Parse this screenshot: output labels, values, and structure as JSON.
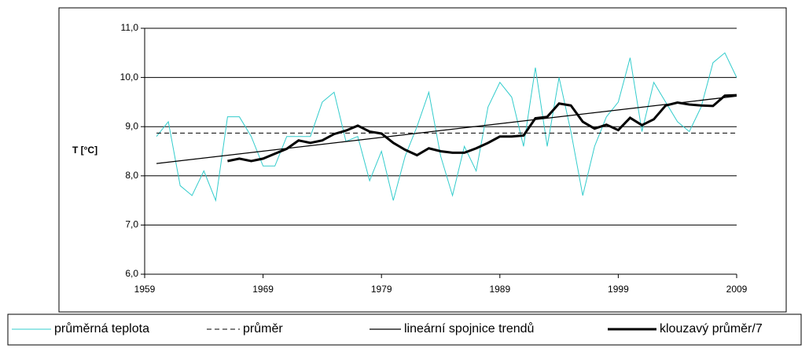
{
  "chart_data": {
    "type": "line",
    "ylabel": "T [°C]",
    "x": [
      1960,
      1961,
      1962,
      1963,
      1964,
      1965,
      1966,
      1967,
      1968,
      1969,
      1970,
      1971,
      1972,
      1973,
      1974,
      1975,
      1976,
      1977,
      1978,
      1979,
      1980,
      1981,
      1982,
      1983,
      1984,
      1985,
      1986,
      1987,
      1988,
      1989,
      1990,
      1991,
      1992,
      1993,
      1994,
      1995,
      1996,
      1997,
      1998,
      1999,
      2000,
      2001,
      2002,
      2003,
      2004,
      2005,
      2006,
      2007,
      2008,
      2009
    ],
    "series": [
      {
        "name": "průměrná teplota",
        "color": "#33cccc",
        "width": 1,
        "dash": "solid",
        "values": [
          8.8,
          9.1,
          7.8,
          7.6,
          8.1,
          7.5,
          9.2,
          9.2,
          8.8,
          8.2,
          8.2,
          8.8,
          8.8,
          8.8,
          9.5,
          9.7,
          8.7,
          8.8,
          7.9,
          8.5,
          7.5,
          8.4,
          9.0,
          9.7,
          8.4,
          7.6,
          8.6,
          8.1,
          9.4,
          9.9,
          9.6,
          8.6,
          10.2,
          8.6,
          10.0,
          8.9,
          7.6,
          8.6,
          9.2,
          9.5,
          10.4,
          8.9,
          9.9,
          9.5,
          9.1,
          8.9,
          9.4,
          10.3,
          10.5,
          10.0
        ]
      },
      {
        "name": "průměr",
        "color": "#000000",
        "width": 1,
        "dash": "dashed",
        "x": [
          1960,
          2009
        ],
        "values": [
          8.87,
          8.87
        ]
      },
      {
        "name": "lineární spojnice trendů",
        "color": "#000000",
        "width": 1.3,
        "dash": "solid",
        "x": [
          1960,
          2009
        ],
        "values": [
          8.25,
          9.62
        ]
      },
      {
        "name": "klouzavý průměr/7",
        "color": "#000000",
        "width": 3,
        "dash": "solid",
        "values": [
          null,
          null,
          null,
          null,
          null,
          null,
          8.3,
          8.35,
          8.3,
          8.35,
          8.45,
          8.55,
          8.72,
          8.67,
          8.72,
          8.85,
          8.92,
          9.02,
          8.9,
          8.86,
          8.67,
          8.53,
          8.42,
          8.56,
          8.5,
          8.47,
          8.47,
          8.56,
          8.67,
          8.8,
          8.8,
          8.82,
          9.17,
          9.2,
          9.47,
          9.43,
          9.1,
          8.96,
          9.04,
          8.93,
          9.18,
          9.03,
          9.15,
          9.43,
          9.49,
          9.45,
          9.43,
          9.42,
          9.63,
          9.64
        ]
      }
    ],
    "xlim": [
      1959,
      2009
    ],
    "xticks": [
      1959,
      1969,
      1979,
      1989,
      1999,
      2009
    ],
    "ylim": [
      6,
      11
    ],
    "yticks": [
      {
        "value": 6,
        "label": "6,0"
      },
      {
        "value": 7,
        "label": "7,0"
      },
      {
        "value": 8,
        "label": "8,0"
      },
      {
        "value": 9,
        "label": "9,0"
      },
      {
        "value": 10,
        "label": "10,0"
      },
      {
        "value": 11,
        "label": "11,0"
      }
    ],
    "grid": true,
    "legend": "bottom"
  }
}
